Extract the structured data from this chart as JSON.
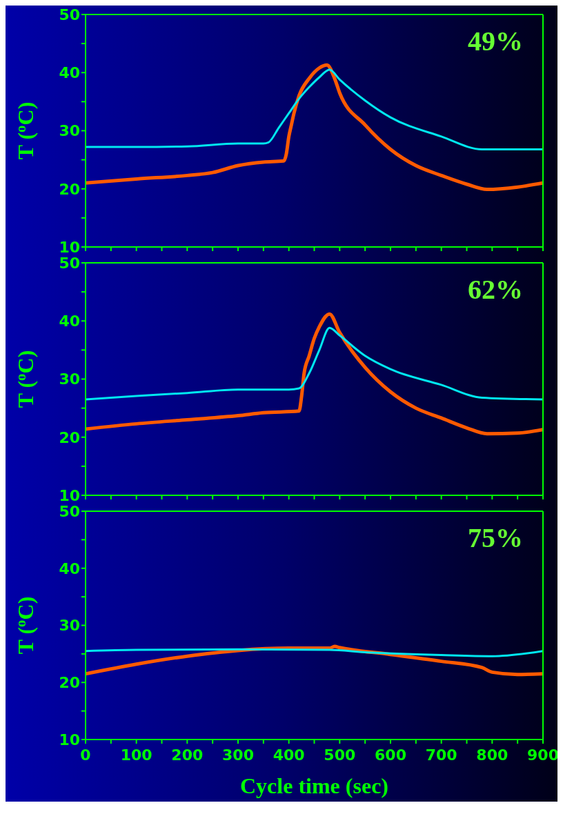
{
  "chart_data": [
    {
      "type": "line",
      "ylabel": "T ($^{o}$C)",
      "annotations": [
        "49%"
      ],
      "xlim": [
        0,
        900
      ],
      "xticks": [
        0,
        {
          "value": 50,
          "label": null
        },
        100,
        {
          "value": 150,
          "label": null
        },
        200,
        {
          "value": 250,
          "label": null
        },
        300,
        {
          "value": 350,
          "label": null
        },
        400,
        {
          "value": 450,
          "label": null
        },
        500,
        {
          "value": 550,
          "label": null
        },
        600,
        {
          "value": 650,
          "label": null
        },
        700,
        {
          "value": 750,
          "label": null
        },
        800,
        {
          "value": 850,
          "label": null
        },
        900
      ],
      "ylim": [
        10,
        50
      ],
      "yticks": [
        10,
        {
          "value": 15,
          "label": null
        },
        20,
        {
          "value": 25,
          "label": null
        },
        30,
        {
          "value": 35,
          "label": null
        },
        40,
        {
          "value": 45,
          "label": null
        },
        50
      ],
      "tick_labels": "y",
      "series": [
        {
          "color": "#00e8f0",
          "x": [
            0,
            100,
            200,
            300,
            350,
            360,
            380,
            400,
            420,
            440,
            460,
            480,
            500,
            550,
            600,
            700,
            780,
            900
          ],
          "values": [
            27.2,
            27.2,
            27.3,
            27.8,
            27.8,
            28,
            30.5,
            33,
            35.5,
            37.5,
            39.2,
            40.5,
            38.8,
            35.2,
            32.3,
            29,
            26.8,
            26.8
          ]
        },
        {
          "color": "#ff5a00",
          "x": [
            0,
            100,
            200,
            250,
            300,
            350,
            390,
            395,
            400,
            405,
            410,
            420,
            440,
            460,
            475,
            490,
            500,
            550,
            600,
            650,
            700,
            750,
            790,
            850,
            900
          ],
          "values": [
            21,
            21.7,
            22.3,
            22.8,
            24,
            24.6,
            24.8,
            26,
            29,
            31,
            33,
            36,
            39,
            40.8,
            41.3,
            39,
            36.5,
            31,
            26.8,
            24,
            22.3,
            20.8,
            19.9,
            20.3,
            21
          ]
        }
      ]
    },
    {
      "type": "line",
      "ylabel": "T ($^{o}$C)",
      "annotations": [
        "62%"
      ],
      "xlim": [
        0,
        900
      ],
      "xticks": [
        0,
        {
          "value": 50,
          "label": null
        },
        100,
        {
          "value": 150,
          "label": null
        },
        200,
        {
          "value": 250,
          "label": null
        },
        300,
        {
          "value": 350,
          "label": null
        },
        400,
        {
          "value": 450,
          "label": null
        },
        500,
        {
          "value": 550,
          "label": null
        },
        600,
        {
          "value": 650,
          "label": null
        },
        700,
        {
          "value": 750,
          "label": null
        },
        800,
        {
          "value": 850,
          "label": null
        },
        900
      ],
      "ylim": [
        10,
        50
      ],
      "yticks": [
        10,
        {
          "value": 15,
          "label": null
        },
        20,
        {
          "value": 25,
          "label": null
        },
        30,
        {
          "value": 35,
          "label": null
        },
        40,
        {
          "value": 45,
          "label": null
        },
        50
      ],
      "tick_labels": "y",
      "series": [
        {
          "color": "#00e8f0",
          "x": [
            0,
            100,
            200,
            300,
            400,
            420,
            440,
            460,
            480,
            500,
            550,
            600,
            700,
            780,
            900
          ],
          "values": [
            26.5,
            27.1,
            27.6,
            28.2,
            28.2,
            28.4,
            31,
            35,
            38.8,
            37.5,
            34,
            31.7,
            29,
            26.8,
            26.5
          ]
        },
        {
          "color": "#ff5a00",
          "x": [
            0,
            100,
            200,
            300,
            350,
            420,
            425,
            430,
            440,
            450,
            460,
            480,
            500,
            550,
            600,
            650,
            700,
            750,
            790,
            850,
            900
          ],
          "values": [
            21.4,
            22.3,
            23,
            23.7,
            24.2,
            24.5,
            27,
            31,
            34,
            37,
            39,
            41.2,
            38,
            32,
            27.8,
            25,
            23.3,
            21.6,
            20.6,
            20.7,
            21.3
          ]
        }
      ]
    },
    {
      "type": "line",
      "xlabel": "Cycle time (sec)",
      "ylabel": "T ($^{o}$C)",
      "annotations": [
        "75%"
      ],
      "xlim": [
        0,
        900
      ],
      "xticks": [
        0,
        {
          "value": 50,
          "label": null
        },
        100,
        {
          "value": 150,
          "label": null
        },
        200,
        {
          "value": 250,
          "label": null
        },
        300,
        {
          "value": 350,
          "label": null
        },
        400,
        {
          "value": 450,
          "label": null
        },
        500,
        {
          "value": 550,
          "label": null
        },
        600,
        {
          "value": 650,
          "label": null
        },
        700,
        {
          "value": 750,
          "label": null
        },
        800,
        {
          "value": 850,
          "label": null
        },
        900
      ],
      "ylim": [
        10,
        50
      ],
      "yticks": [
        10,
        {
          "value": 15,
          "label": null
        },
        20,
        {
          "value": 25,
          "label": null
        },
        30,
        {
          "value": 35,
          "label": null
        },
        40,
        {
          "value": 45,
          "label": null
        },
        50
      ],
      "series": [
        {
          "color": "#00e8f0",
          "x": [
            0,
            100,
            300,
            480,
            550,
            700,
            800,
            900
          ],
          "values": [
            25.5,
            25.7,
            25.8,
            25.7,
            25.3,
            24.8,
            24.6,
            25.5
          ]
        },
        {
          "color": "#ff5a00",
          "x": [
            0,
            100,
            200,
            300,
            400,
            480,
            490,
            500,
            600,
            700,
            780,
            800,
            850,
            900
          ],
          "values": [
            21.5,
            23.2,
            24.6,
            25.6,
            26,
            26,
            26.3,
            26.1,
            24.9,
            23.7,
            22.6,
            21.8,
            21.4,
            21.5
          ]
        }
      ]
    }
  ]
}
